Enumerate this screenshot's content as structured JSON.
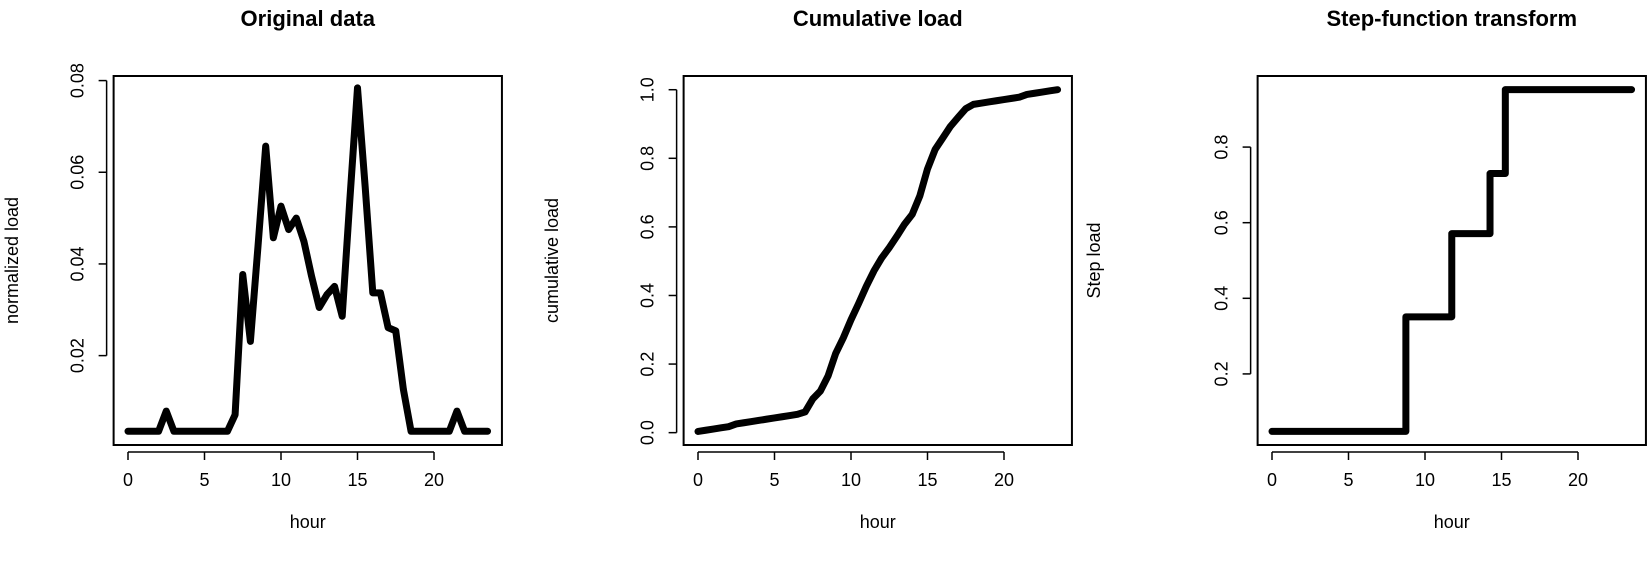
{
  "chart_data": [
    {
      "type": "line",
      "title": "Original data",
      "xlabel": "hour",
      "ylabel": "normalized load",
      "xlim": [
        -0.94,
        24.44
      ],
      "ylim": [
        0.0005,
        0.081
      ],
      "xticks": [
        0,
        5,
        10,
        15,
        20
      ],
      "yticks": [
        0.02,
        0.04,
        0.06,
        0.08
      ],
      "ytick_labels": [
        "0.02",
        "0.04",
        "0.06",
        "0.08"
      ],
      "grid": false,
      "x": [
        0,
        0.5,
        1,
        1.5,
        2,
        2.5,
        3,
        3.5,
        4,
        4.5,
        5,
        5.5,
        6,
        6.5,
        7,
        7.5,
        8,
        8.5,
        9,
        9.5,
        10,
        10.5,
        11,
        11.5,
        12,
        12.5,
        13,
        13.5,
        14,
        14.5,
        15,
        15.5,
        16,
        16.5,
        17,
        17.5,
        18,
        18.5,
        19,
        19.5,
        20,
        20.5,
        21,
        21.5,
        22,
        22.5,
        23,
        23.5
      ],
      "y": [
        0.0035,
        0.0035,
        0.0035,
        0.0035,
        0.0035,
        0.0079,
        0.0035,
        0.0035,
        0.0035,
        0.0035,
        0.0035,
        0.0035,
        0.0035,
        0.0035,
        0.0071,
        0.0377,
        0.0231,
        0.044,
        0.0657,
        0.0457,
        0.0526,
        0.0475,
        0.05,
        0.0449,
        0.0373,
        0.0305,
        0.0333,
        0.0351,
        0.0286,
        0.054,
        0.0784,
        0.0569,
        0.0337,
        0.0337,
        0.0261,
        0.0254,
        0.0126,
        0.0035,
        0.0035,
        0.0035,
        0.0035,
        0.0035,
        0.0035,
        0.0079,
        0.0035,
        0.0035,
        0.0035,
        0.0035
      ]
    },
    {
      "type": "line",
      "title": "Cumulative load",
      "xlabel": "hour",
      "ylabel": "cumulative load",
      "xlim": [
        -0.94,
        24.44
      ],
      "ylim": [
        -0.036,
        1.04
      ],
      "xticks": [
        0,
        5,
        10,
        15,
        20
      ],
      "yticks": [
        0,
        0.2,
        0.4,
        0.6,
        0.8,
        1.0
      ],
      "ytick_labels": [
        "0.0",
        "0.2",
        "0.4",
        "0.6",
        "0.8",
        "1.0"
      ],
      "grid": false,
      "x": [
        0,
        0.5,
        1,
        1.5,
        2,
        2.5,
        3,
        3.5,
        4,
        4.5,
        5,
        5.5,
        6,
        6.5,
        7,
        7.5,
        8,
        8.5,
        9,
        9.5,
        10,
        10.5,
        11,
        11.5,
        12,
        12.5,
        13,
        13.5,
        14,
        14.5,
        15,
        15.5,
        16,
        16.5,
        17,
        17.5,
        18,
        18.5,
        19,
        19.5,
        20,
        20.5,
        21,
        21.5,
        22,
        22.5,
        23,
        23.5
      ],
      "y": [
        0.0035,
        0.007,
        0.0105,
        0.014,
        0.0175,
        0.0254,
        0.0289,
        0.0324,
        0.0359,
        0.0394,
        0.0429,
        0.0464,
        0.0499,
        0.0534,
        0.0605,
        0.0982,
        0.1213,
        0.1653,
        0.231,
        0.2767,
        0.3293,
        0.3768,
        0.4268,
        0.4717,
        0.509,
        0.5395,
        0.5728,
        0.6079,
        0.6365,
        0.6905,
        0.7689,
        0.8258,
        0.8595,
        0.8932,
        0.9193,
        0.9447,
        0.9573,
        0.9608,
        0.9643,
        0.9678,
        0.9713,
        0.9748,
        0.9783,
        0.9862,
        0.9897,
        0.9932,
        0.9967,
        1.0
      ]
    },
    {
      "type": "line",
      "step": true,
      "title": "Step-function transform",
      "xlabel": "hour",
      "ylabel": "Step load",
      "xlim": [
        -0.94,
        24.44
      ],
      "ylim": [
        0.012,
        0.988
      ],
      "xticks": [
        0,
        5,
        10,
        15,
        20
      ],
      "yticks": [
        0.2,
        0.4,
        0.6,
        0.8
      ],
      "ytick_labels": [
        "0.2",
        "0.4",
        "0.6",
        "0.8"
      ],
      "grid": false,
      "x": [
        0,
        8.75,
        11.75,
        14.25,
        15.25,
        23.5
      ],
      "y": [
        0.048,
        0.351,
        0.571,
        0.73,
        0.952,
        0.952
      ]
    }
  ]
}
